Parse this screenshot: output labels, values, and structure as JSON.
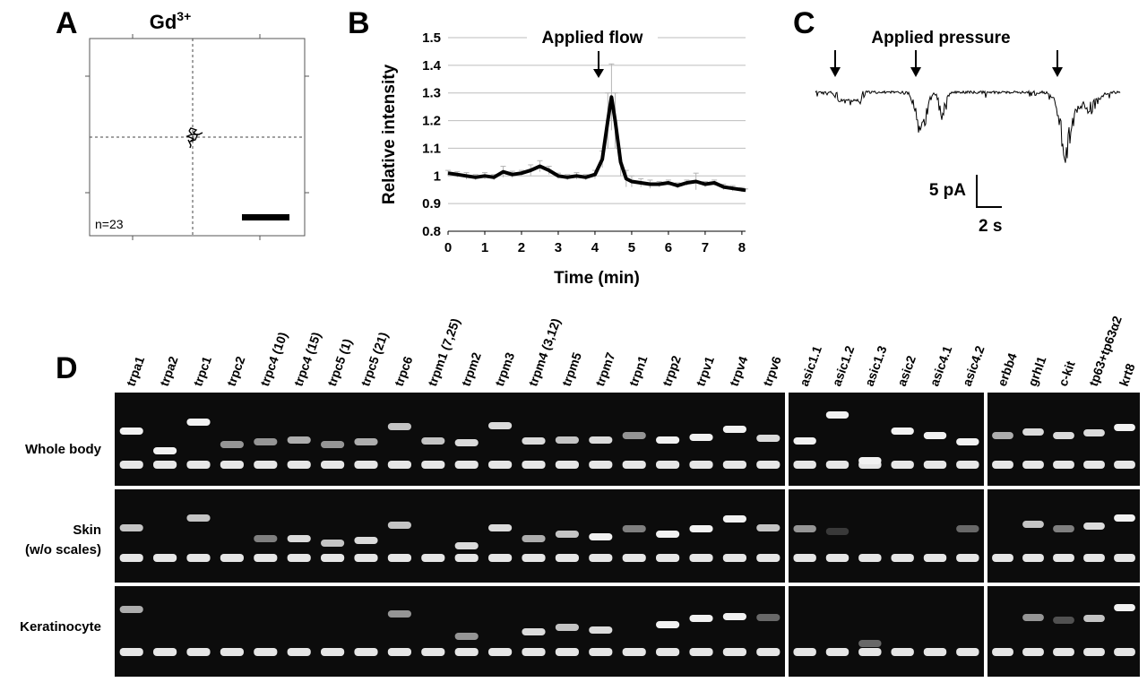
{
  "panelA": {
    "letter": "A",
    "title": "Gd",
    "title_sup": "3+",
    "n_label": "n=23"
  },
  "panelB": {
    "letter": "B",
    "annotation": "Applied flow",
    "annotation_time_min": 4.1
  },
  "panelC": {
    "letter": "C",
    "annotation": "Applied pressure",
    "scale_y_label": "5 pA",
    "scale_x_label": "2 s"
  },
  "panelD": {
    "letter": "D",
    "group1_lanes": [
      "trpa1",
      "trpa2",
      "trpc1",
      "trpc2",
      "trpc4 (10)",
      "trpc4 (15)",
      "trpc5 (1)",
      "trpc5 (21)",
      "trpc6",
      "trpm1 (7,25)",
      "trpm2",
      "trpm3",
      "trpm4 (3,12)",
      "trpm5",
      "trpm7",
      "trpn1",
      "trpp2",
      "trpv1",
      "trpv4",
      "trpv6"
    ],
    "group2_lanes": [
      "asic1.1",
      "asic1.2",
      "asic1.3",
      "asic2",
      "asic4.1",
      "asic4.2"
    ],
    "group3_lanes": [
      "erbb4",
      "grhl1",
      "c-kit",
      "tp63+tp63α2",
      "krt8"
    ],
    "row_labels": [
      "Whole body",
      "Skin",
      "(w/o scales)",
      "Keratinocyte"
    ]
  },
  "chart_data": {
    "type": "line",
    "title": "",
    "xlabel": "Time (min)",
    "ylabel": "Relative intensity",
    "xlim": [
      0,
      8.1
    ],
    "ylim": [
      0.8,
      1.5
    ],
    "xticks": [
      "0",
      "1",
      "2",
      "3",
      "4",
      "5",
      "6",
      "7",
      "8"
    ],
    "yticks": [
      "0.8",
      "0.9",
      "1",
      "1.1",
      "1.2",
      "1.3",
      "1.4",
      "1.5"
    ],
    "grid": "horizontal",
    "x": [
      0,
      0.25,
      0.5,
      0.75,
      1.0,
      1.25,
      1.5,
      1.75,
      2.0,
      2.25,
      2.5,
      2.75,
      3.0,
      3.25,
      3.5,
      3.75,
      4.0,
      4.2,
      4.35,
      4.45,
      4.55,
      4.7,
      4.85,
      5.0,
      5.25,
      5.5,
      5.75,
      6.0,
      6.25,
      6.5,
      6.75,
      7.0,
      7.25,
      7.5,
      7.75,
      8.0,
      8.1
    ],
    "y": [
      1.01,
      1.005,
      1.0,
      0.995,
      1.0,
      0.995,
      1.015,
      1.005,
      1.01,
      1.02,
      1.035,
      1.02,
      1.0,
      0.995,
      1.0,
      0.995,
      1.005,
      1.06,
      1.2,
      1.285,
      1.2,
      1.05,
      0.99,
      0.98,
      0.975,
      0.97,
      0.97,
      0.975,
      0.965,
      0.975,
      0.98,
      0.97,
      0.975,
      0.96,
      0.955,
      0.95,
      0.948
    ],
    "err": [
      0.01,
      0.01,
      0.012,
      0.01,
      0.012,
      0.01,
      0.02,
      0.012,
      0.01,
      0.02,
      0.02,
      0.015,
      0.01,
      0.01,
      0.012,
      0.01,
      0.015,
      0.03,
      0.1,
      0.12,
      0.1,
      0.05,
      0.03,
      0.02,
      0.015,
      0.015,
      0.01,
      0.01,
      0.01,
      0.01,
      0.03,
      0.01,
      0.01,
      0.01,
      0.01,
      0.008,
      0.005
    ]
  }
}
